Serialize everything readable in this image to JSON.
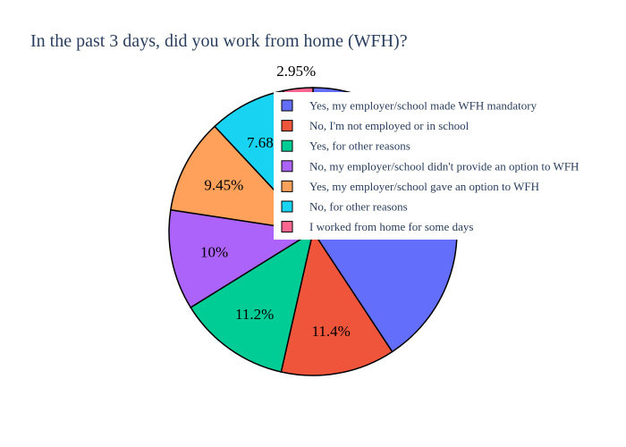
{
  "chart_data": {
    "type": "pie",
    "title": "In the past 3 days, did you work from home (WFH)?",
    "slices": [
      {
        "label": "Yes, my employer/school made WFH mandatory",
        "value": 36.2,
        "display": "",
        "color": "#636efa"
      },
      {
        "label": "No, I'm not employed or in school",
        "value": 11.4,
        "display": "11.4%",
        "color": "#ef553b"
      },
      {
        "label": "Yes, for other reasons",
        "value": 11.2,
        "display": "11.2%",
        "color": "#00cc96"
      },
      {
        "label": "No, my employer/school didn't provide an option to WFH",
        "value": 10.0,
        "display": "10%",
        "color": "#ab63fa"
      },
      {
        "label": "Yes, my employer/school gave an option to WFH",
        "value": 9.45,
        "display": "9.45%",
        "color": "#ffa15a"
      },
      {
        "label": "No, for other reasons",
        "value": 7.68,
        "display": "7.68%",
        "color": "#19d3f3"
      },
      {
        "label": "I worked from home for some days",
        "value": 2.95,
        "display": "2.95%",
        "color": "#ff6692"
      }
    ],
    "direction": "clockwise",
    "legend_position": "top-right"
  }
}
